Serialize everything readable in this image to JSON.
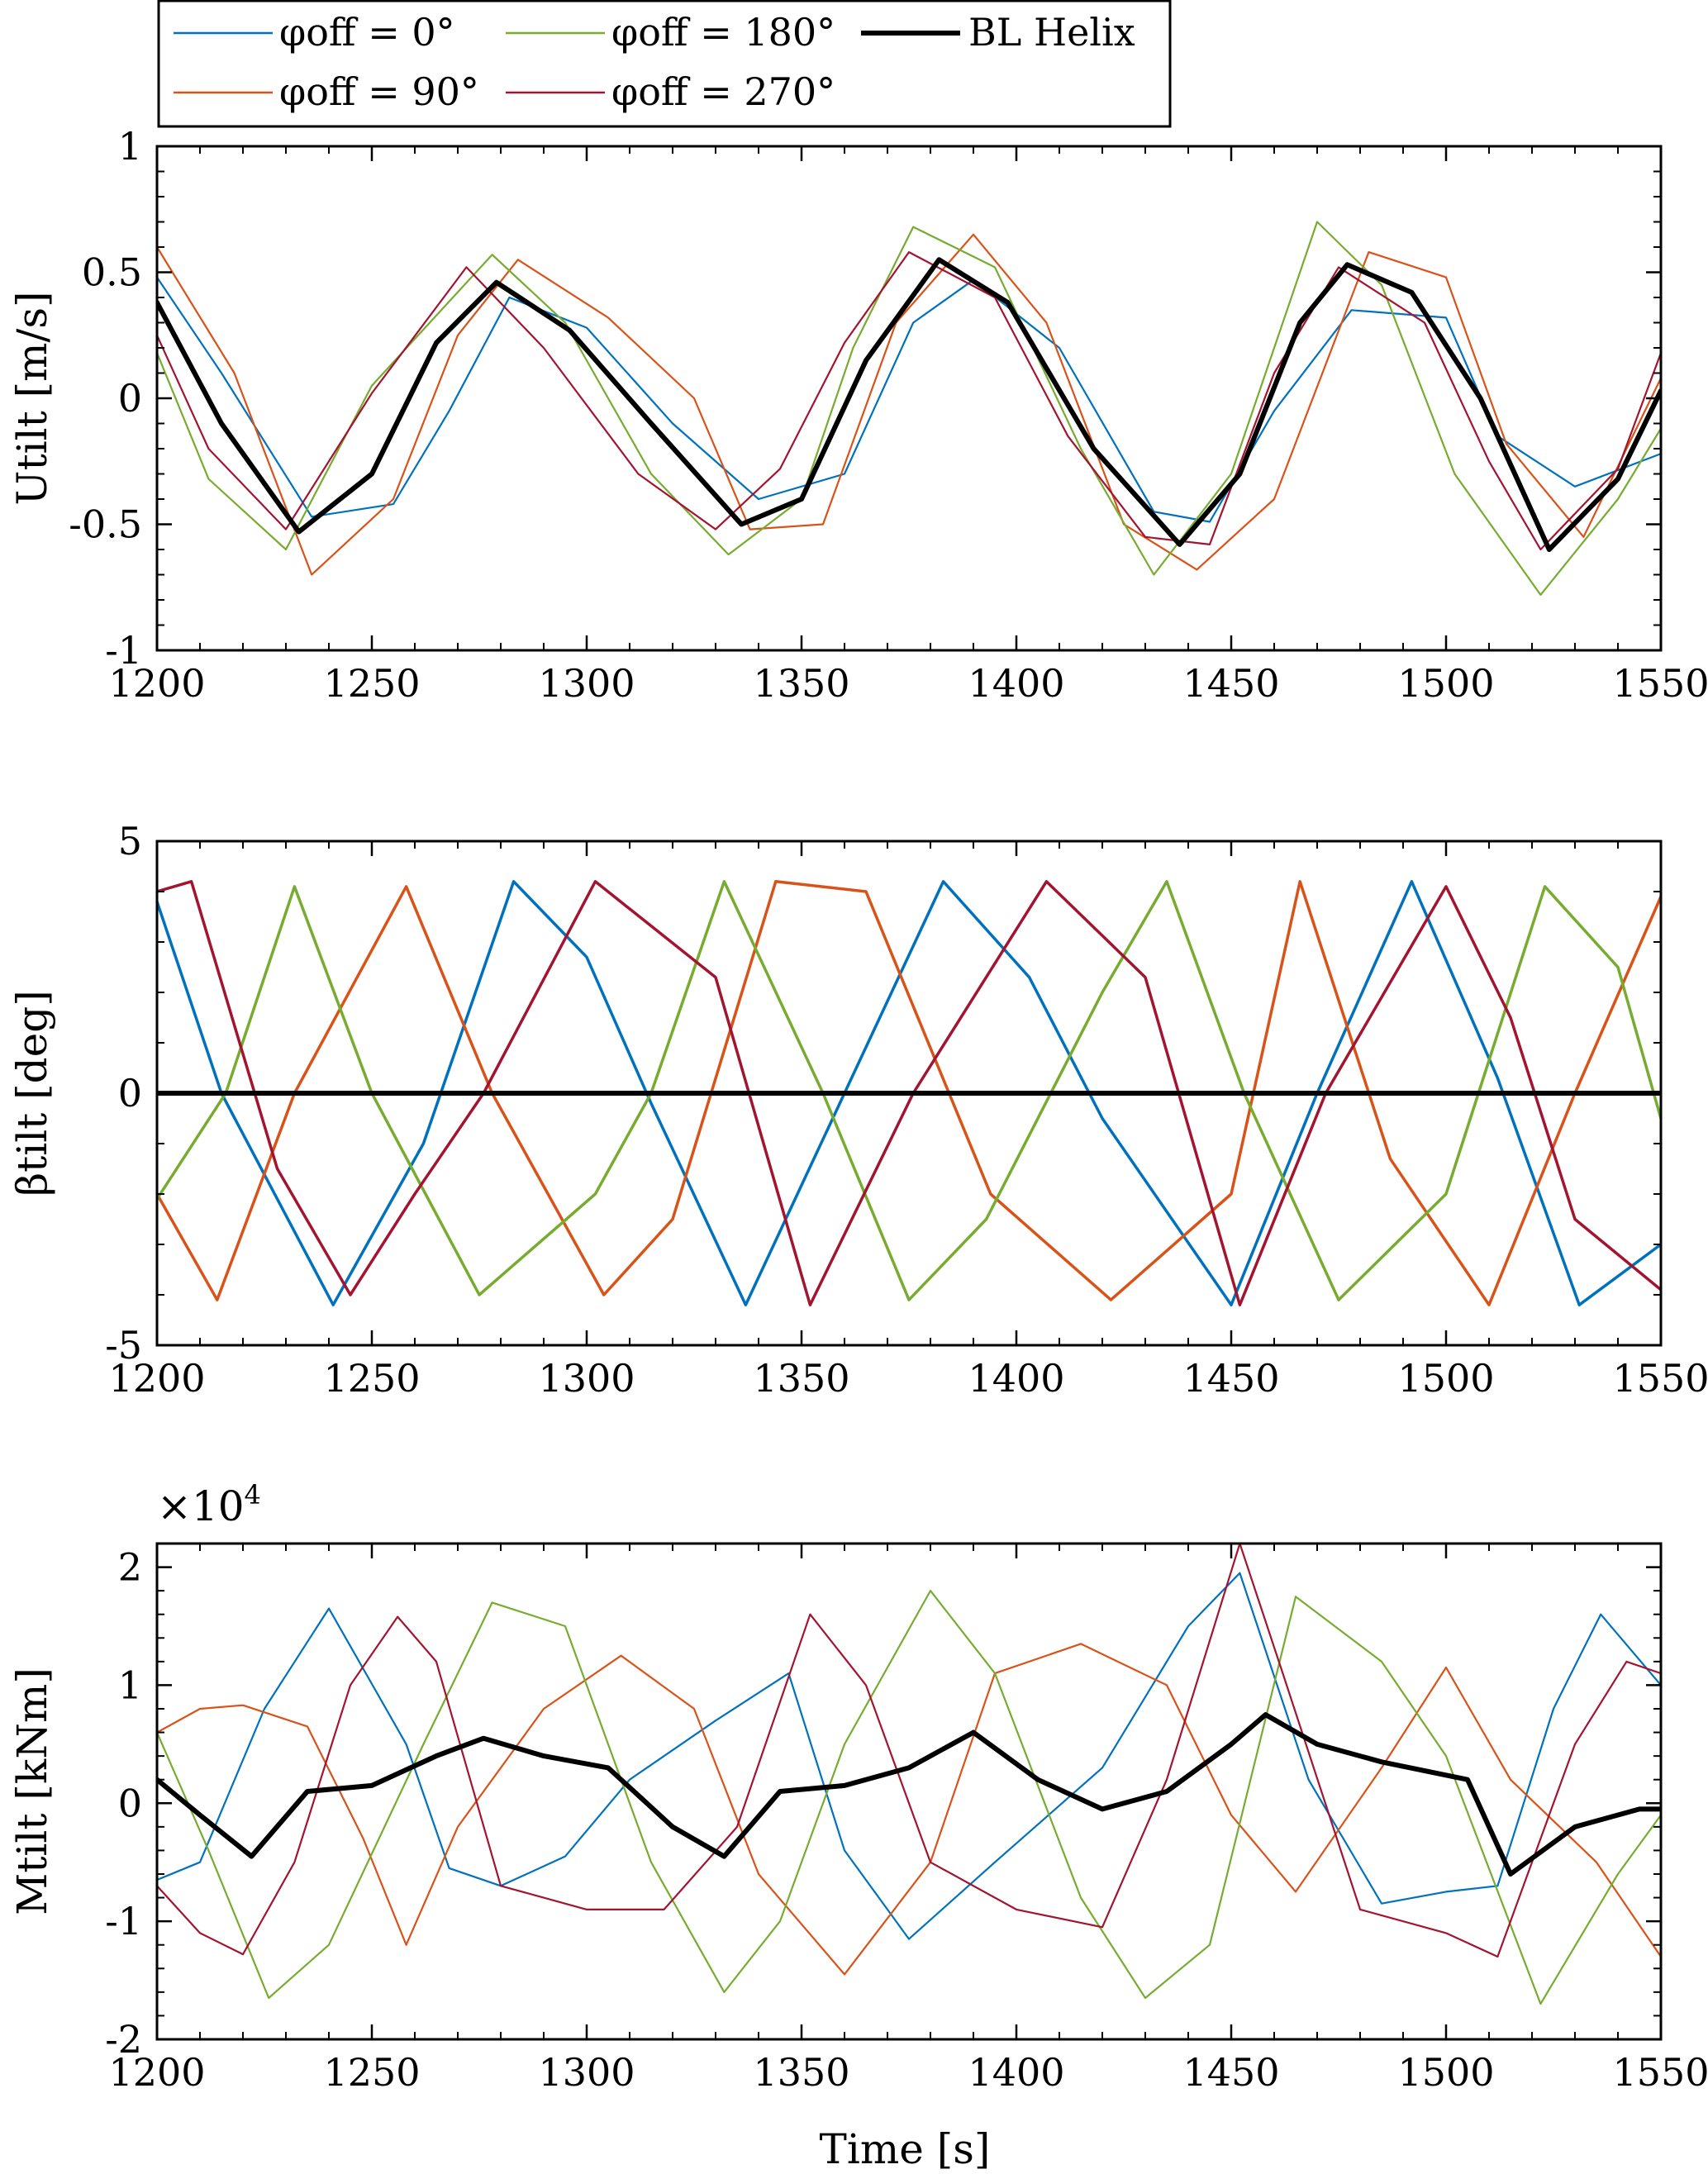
{
  "colors": {
    "blue": "#0072BD",
    "orange": "#D95319",
    "green": "#77AC30",
    "red": "#A2142F",
    "black": "#000000"
  },
  "legend": {
    "entries": [
      {
        "label": "φoff = 0°",
        "color": "#0072BD"
      },
      {
        "label": "φoff = 90°",
        "color": "#D95319"
      },
      {
        "label": "φoff = 180°",
        "color": "#77AC30"
      },
      {
        "label": "φoff = 270°",
        "color": "#A2142F"
      },
      {
        "label": "BL Helix",
        "color": "#000000"
      }
    ]
  },
  "x_axis_title": "Time [s]",
  "chart_data": [
    {
      "type": "line",
      "ylabel": "Utilt [m/s]",
      "xlim": [
        1200,
        1550
      ],
      "ylim": [
        -1,
        1
      ],
      "xticks": [
        1200,
        1250,
        1300,
        1350,
        1400,
        1450,
        1500,
        1550
      ],
      "yticks": [
        -1,
        -0.5,
        0,
        0.5,
        1
      ],
      "ytick_labels": [
        "-1",
        "-0.5",
        "0",
        "0.5",
        "1"
      ],
      "series": [
        {
          "name": "φoff = 0°",
          "color": "#0072BD",
          "x": [
            1200,
            1215,
            1236,
            1255,
            1268,
            1282,
            1300,
            1320,
            1340,
            1360,
            1376,
            1390,
            1410,
            1432,
            1445,
            1460,
            1478,
            1500,
            1512,
            1530,
            1550
          ],
          "y": [
            0.48,
            0.1,
            -0.47,
            -0.42,
            -0.05,
            0.4,
            0.28,
            -0.1,
            -0.4,
            -0.3,
            0.3,
            0.47,
            0.2,
            -0.45,
            -0.49,
            -0.05,
            0.35,
            0.32,
            -0.15,
            -0.35,
            -0.22
          ]
        },
        {
          "name": "φoff = 90°",
          "color": "#D95319",
          "x": [
            1200,
            1218,
            1236,
            1255,
            1270,
            1284,
            1305,
            1325,
            1338,
            1355,
            1372,
            1390,
            1407,
            1425,
            1442,
            1460,
            1482,
            1500,
            1514,
            1532,
            1550
          ],
          "y": [
            0.6,
            0.1,
            -0.7,
            -0.4,
            0.25,
            0.55,
            0.32,
            0,
            -0.52,
            -0.5,
            0.3,
            0.65,
            0.3,
            -0.5,
            -0.68,
            -0.4,
            0.58,
            0.48,
            -0.18,
            -0.55,
            0.08
          ]
        },
        {
          "name": "φoff = 180°",
          "color": "#77AC30",
          "x": [
            1200,
            1212,
            1230,
            1250,
            1278,
            1295,
            1315,
            1333,
            1350,
            1362,
            1376,
            1395,
            1415,
            1432,
            1450,
            1470,
            1485,
            1502,
            1522,
            1540,
            1550
          ],
          "y": [
            0.18,
            -0.32,
            -0.6,
            0.05,
            0.57,
            0.3,
            -0.3,
            -0.62,
            -0.4,
            0.2,
            0.68,
            0.52,
            -0.2,
            -0.7,
            -0.3,
            0.7,
            0.45,
            -0.3,
            -0.78,
            -0.4,
            -0.12
          ]
        },
        {
          "name": "φoff = 270°",
          "color": "#A2142F",
          "x": [
            1200,
            1212,
            1230,
            1250,
            1272,
            1290,
            1312,
            1330,
            1345,
            1360,
            1375,
            1395,
            1412,
            1430,
            1445,
            1460,
            1475,
            1495,
            1510,
            1522,
            1540,
            1550
          ],
          "y": [
            0.25,
            -0.2,
            -0.52,
            0.02,
            0.52,
            0.2,
            -0.3,
            -0.52,
            -0.28,
            0.22,
            0.58,
            0.4,
            -0.15,
            -0.55,
            -0.58,
            0.1,
            0.52,
            0.3,
            -0.25,
            -0.6,
            -0.28,
            0.18
          ]
        },
        {
          "name": "BL Helix",
          "color": "#000000",
          "x": [
            1200,
            1215,
            1233,
            1250,
            1265,
            1279,
            1296,
            1315,
            1336,
            1350,
            1365,
            1382,
            1398,
            1418,
            1438,
            1452,
            1466,
            1477,
            1492,
            1508,
            1524,
            1540,
            1550
          ],
          "y": [
            0.38,
            -0.1,
            -0.53,
            -0.3,
            0.22,
            0.46,
            0.27,
            -0.1,
            -0.5,
            -0.4,
            0.15,
            0.55,
            0.38,
            -0.2,
            -0.58,
            -0.3,
            0.3,
            0.53,
            0.42,
            0,
            -0.6,
            -0.32,
            0.03
          ]
        }
      ]
    },
    {
      "type": "line",
      "ylabel": "βtilt [deg]",
      "xlim": [
        1200,
        1550
      ],
      "ylim": [
        -5,
        5
      ],
      "xticks": [
        1200,
        1250,
        1300,
        1350,
        1400,
        1450,
        1500,
        1550
      ],
      "yticks": [
        -5,
        0,
        5
      ],
      "ytick_labels": [
        "-5",
        "0",
        "5"
      ],
      "series": [
        {
          "name": "φoff = 0°",
          "color": "#0072BD",
          "x": [
            1200,
            1215,
            1241,
            1262,
            1283,
            1300,
            1315,
            1337,
            1360,
            1383,
            1403,
            1420,
            1450,
            1470,
            1492,
            1512,
            1531,
            1550
          ],
          "y": [
            3.8,
            0,
            -4.2,
            -1,
            4.2,
            2.7,
            -0.2,
            -4.2,
            0,
            4.2,
            2.3,
            -0.5,
            -4.2,
            0,
            4.2,
            0.3,
            -4.2,
            -3
          ]
        },
        {
          "name": "φoff = 90°",
          "color": "#D95319",
          "x": [
            1200,
            1214,
            1232,
            1258,
            1278,
            1304,
            1320,
            1344,
            1365,
            1394,
            1422,
            1450,
            1466,
            1487,
            1510,
            1530,
            1550
          ],
          "y": [
            -2,
            -4.1,
            0,
            4.1,
            0,
            -4,
            -2.5,
            4.2,
            4,
            -2,
            -4.1,
            -2,
            4.2,
            -1.3,
            -4.2,
            0,
            3.9
          ]
        },
        {
          "name": "φoff = 180°",
          "color": "#77AC30",
          "x": [
            1200,
            1216,
            1232,
            1250,
            1275,
            1302,
            1315,
            1332,
            1355,
            1375,
            1393,
            1420,
            1435,
            1453,
            1475,
            1500,
            1523,
            1540,
            1550
          ],
          "y": [
            -2.1,
            0,
            4.1,
            0,
            -4,
            -2,
            0,
            4.2,
            0,
            -4.1,
            -2.5,
            2,
            4.2,
            0,
            -4.1,
            -2,
            4.1,
            2.5,
            -0.5
          ]
        },
        {
          "name": "φoff = 270°",
          "color": "#A2142F",
          "x": [
            1200,
            1208,
            1228,
            1245,
            1260,
            1276,
            1302,
            1330,
            1352,
            1376,
            1407,
            1430,
            1452,
            1472,
            1500,
            1515,
            1530,
            1550
          ],
          "y": [
            4,
            4.2,
            -1.5,
            -4,
            -2,
            0,
            4.2,
            2.3,
            -4.2,
            0,
            4.2,
            2.3,
            -4.2,
            0,
            4.1,
            1.5,
            -2.5,
            -3.9
          ]
        },
        {
          "name": "BL Helix",
          "color": "#000000",
          "x": [
            1200,
            1550
          ],
          "y": [
            0,
            0
          ]
        }
      ]
    },
    {
      "type": "line",
      "ylabel": "Mtilt [kNm]",
      "multiplier": "×10^4",
      "multiplier_base": "×10",
      "multiplier_exp": "4",
      "xlim": [
        1200,
        1550
      ],
      "ylim": [
        -20000,
        22000
      ],
      "xticks": [
        1200,
        1250,
        1300,
        1350,
        1400,
        1450,
        1500,
        1550
      ],
      "yticks": [
        -20000,
        -10000,
        0,
        10000,
        20000
      ],
      "ytick_labels": [
        "-2",
        "-1",
        "0",
        "1",
        "2"
      ],
      "series": [
        {
          "name": "φoff = 0°",
          "color": "#0072BD",
          "x": [
            1200,
            1210,
            1225,
            1240,
            1258,
            1268,
            1280,
            1295,
            1310,
            1330,
            1347,
            1360,
            1375,
            1395,
            1420,
            1440,
            1452,
            1468,
            1485,
            1500,
            1512,
            1525,
            1536,
            1550
          ],
          "y": [
            -6500,
            -5000,
            8000,
            16500,
            5000,
            -5500,
            -7000,
            -4500,
            2000,
            7000,
            11000,
            -4000,
            -11500,
            -5000,
            3000,
            15000,
            19500,
            2000,
            -8500,
            -7500,
            -7000,
            8000,
            16000,
            10000
          ]
        },
        {
          "name": "φoff = 90°",
          "color": "#D95319",
          "x": [
            1200,
            1210,
            1220,
            1235,
            1248,
            1258,
            1270,
            1290,
            1308,
            1325,
            1340,
            1360,
            1380,
            1395,
            1415,
            1435,
            1450,
            1465,
            1485,
            1500,
            1515,
            1535,
            1550
          ],
          "y": [
            6000,
            8000,
            8300,
            6500,
            -3000,
            -12000,
            -2000,
            8000,
            12500,
            8000,
            -6000,
            -14500,
            -5000,
            11000,
            13500,
            10000,
            -1000,
            -7500,
            3000,
            11500,
            2000,
            -5000,
            -13000
          ]
        },
        {
          "name": "φoff = 180°",
          "color": "#77AC30",
          "x": [
            1200,
            1212,
            1226,
            1240,
            1262,
            1278,
            1295,
            1315,
            1332,
            1345,
            1360,
            1380,
            1395,
            1415,
            1430,
            1445,
            1465,
            1485,
            1500,
            1522,
            1540,
            1550
          ],
          "y": [
            6000,
            -4000,
            -16500,
            -12000,
            5000,
            17000,
            15000,
            -5000,
            -16000,
            -10000,
            5000,
            18000,
            11000,
            -8000,
            -16500,
            -12000,
            17500,
            12000,
            4000,
            -17000,
            -6000,
            -1000
          ]
        },
        {
          "name": "φoff = 270°",
          "color": "#A2142F",
          "x": [
            1200,
            1210,
            1220,
            1232,
            1245,
            1256,
            1265,
            1280,
            1300,
            1318,
            1335,
            1352,
            1365,
            1380,
            1400,
            1420,
            1435,
            1452,
            1462,
            1480,
            1500,
            1512,
            1530,
            1542,
            1550
          ],
          "y": [
            -7000,
            -11000,
            -12800,
            -5000,
            10000,
            15800,
            12000,
            -7000,
            -9000,
            -9000,
            -2000,
            16000,
            10000,
            -5000,
            -9000,
            -10500,
            2000,
            22000,
            11000,
            -9000,
            -11000,
            -13000,
            5000,
            12000,
            11000
          ]
        },
        {
          "name": "BL Helix",
          "color": "#000000",
          "x": [
            1200,
            1210,
            1222,
            1235,
            1250,
            1265,
            1276,
            1290,
            1305,
            1320,
            1332,
            1345,
            1360,
            1375,
            1390,
            1405,
            1420,
            1435,
            1450,
            1458,
            1470,
            1485,
            1505,
            1515,
            1530,
            1545,
            1550
          ],
          "y": [
            2000,
            -1000,
            -4500,
            1000,
            1500,
            4000,
            5500,
            4000,
            3000,
            -2000,
            -4500,
            1000,
            1500,
            3000,
            6000,
            2000,
            -500,
            1000,
            5000,
            7500,
            5000,
            3500,
            2000,
            -6000,
            -2000,
            -500,
            -500
          ]
        }
      ]
    }
  ]
}
